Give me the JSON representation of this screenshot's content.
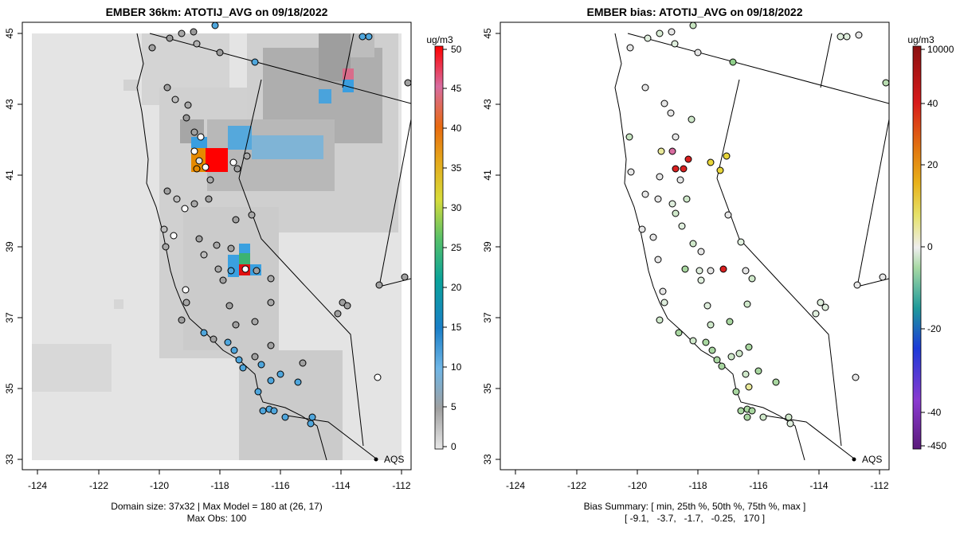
{
  "left_panel": {
    "title": "EMBER 36km: ATOTIJ_AVG on 09/18/2022",
    "x_ticks": [
      "-124",
      "-122",
      "-120",
      "-118",
      "-116",
      "-114",
      "-112"
    ],
    "y_ticks": [
      "45",
      "43",
      "41",
      "39",
      "37",
      "35",
      "33"
    ],
    "colorbar_unit": "ug/m3",
    "colorbar_ticks": [
      "50",
      "45",
      "40",
      "35",
      "30",
      "25",
      "20",
      "15",
      "10",
      "5",
      "0"
    ],
    "legend_label": "AQS",
    "caption_line1": "Domain size: 37x32 | Max Model = 180 at (26, 17)",
    "caption_line2": "Max Obs: 100"
  },
  "right_panel": {
    "title": "EMBER bias: ATOTIJ_AVG on 09/18/2022",
    "x_ticks": [
      "-124",
      "-122",
      "-120",
      "-118",
      "-116",
      "-114",
      "-112"
    ],
    "y_ticks": [
      "45",
      "43",
      "41",
      "39",
      "37",
      "35",
      "33"
    ],
    "colorbar_unit": "ug/m3",
    "colorbar_ticks": [
      "10000",
      "40",
      "20",
      "0",
      "-20",
      "-40",
      "-450"
    ],
    "legend_label": "AQS",
    "caption_line1": "Bias Summary: [ min, 25th %, 50th %, 75th %, max ]",
    "caption_line2": "[ -9.1,   -3.7,   -1.7,   -0.25,   170 ]"
  },
  "colors": {
    "frame": "#000000",
    "model_bg": "#e4e4e4",
    "model_gray": "#c6c6c6",
    "model_dark": "#a2a2a2",
    "high": "#ff0000",
    "orange": "#e68a00",
    "blue": "#3aa0e0",
    "green": "#3cb371"
  }
}
